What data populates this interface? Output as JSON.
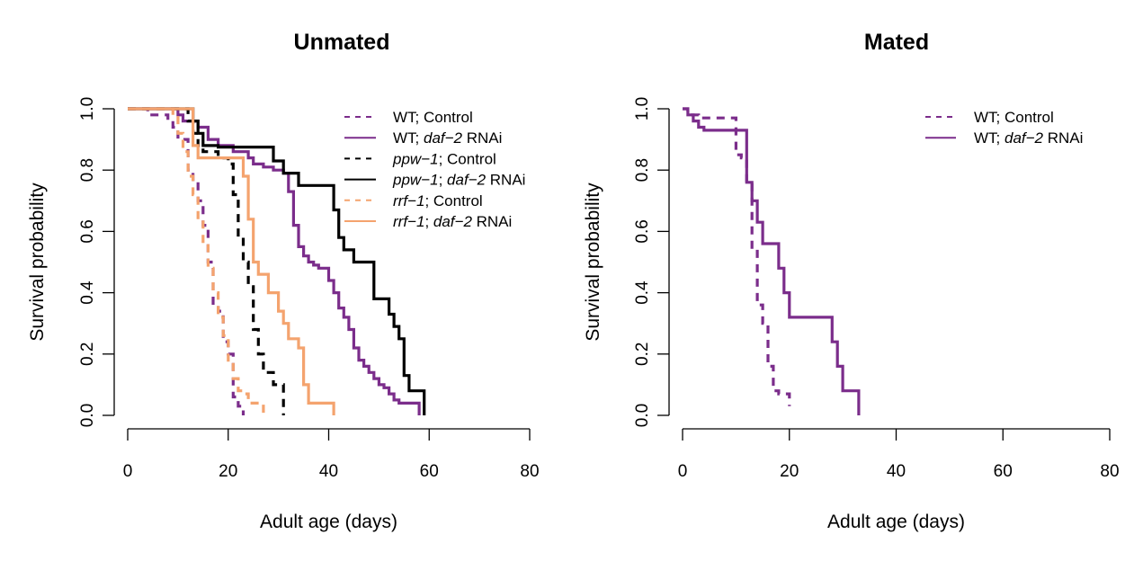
{
  "colors": {
    "wt": "#7b2d8b",
    "ppw": "#000000",
    "rrf": "#f4a36e"
  },
  "chart_data": [
    {
      "type": "line",
      "subtype": "step",
      "title": "Unmated",
      "xlabel": "Adult age (days)",
      "ylabel": "Survival probability",
      "xlim": [
        0,
        80
      ],
      "ylim": [
        0,
        1
      ],
      "x_ticks": [
        "0",
        "20",
        "40",
        "60",
        "80"
      ],
      "y_ticks": [
        "0.0",
        "0.2",
        "0.4",
        "0.6",
        "0.8",
        "1.0"
      ],
      "grid": false,
      "legend_position": "top-right",
      "series": [
        {
          "name": "WT; Control",
          "name_pre": "WT; Control",
          "name_it": "",
          "name_post": "",
          "color": "#7b2d8b",
          "dash": true,
          "x": [
            0,
            4,
            8,
            9,
            10,
            12,
            13,
            14,
            15,
            16,
            17,
            18,
            19,
            20,
            21,
            22,
            23
          ],
          "y": [
            1.0,
            0.98,
            0.96,
            0.94,
            0.9,
            0.8,
            0.76,
            0.7,
            0.62,
            0.5,
            0.36,
            0.34,
            0.24,
            0.2,
            0.06,
            0.03,
            0.0
          ]
        },
        {
          "name": "WT; daf-2 RNAi",
          "name_pre": "WT; ",
          "name_it": "daf−2",
          "name_post": " RNAi",
          "color": "#7b2d8b",
          "dash": false,
          "x": [
            0,
            10,
            11,
            14,
            16,
            18,
            21,
            24,
            25,
            27,
            29,
            31,
            32,
            33,
            34,
            35,
            36,
            37,
            38,
            40,
            41,
            42,
            43,
            44,
            45,
            46,
            47,
            48,
            49,
            50,
            51,
            52,
            53,
            54,
            58
          ],
          "y": [
            1.0,
            0.98,
            0.96,
            0.94,
            0.9,
            0.88,
            0.86,
            0.84,
            0.82,
            0.81,
            0.8,
            0.79,
            0.73,
            0.62,
            0.55,
            0.52,
            0.5,
            0.49,
            0.48,
            0.44,
            0.4,
            0.35,
            0.32,
            0.28,
            0.22,
            0.18,
            0.16,
            0.14,
            0.12,
            0.1,
            0.09,
            0.07,
            0.05,
            0.04,
            0.0
          ]
        },
        {
          "name": "ppw-1; Control",
          "name_pre": "",
          "name_it": "ppw−1",
          "name_post": "; Control",
          "color": "#000000",
          "dash": true,
          "x": [
            0,
            12,
            13,
            14,
            15,
            18,
            20,
            21,
            22,
            23,
            24,
            25,
            26,
            27,
            29,
            31
          ],
          "y": [
            1.0,
            0.96,
            0.92,
            0.88,
            0.86,
            0.84,
            0.82,
            0.72,
            0.58,
            0.5,
            0.42,
            0.28,
            0.2,
            0.14,
            0.1,
            0.0
          ]
        },
        {
          "name": "ppw-1; daf-2 RNAi",
          "name_pre": "",
          "name_it": "ppw−1",
          "name_post": "; daf−2 RNAi",
          "color": "#000000",
          "dash": false,
          "x": [
            0,
            13,
            14,
            15,
            18,
            29,
            31,
            34,
            41,
            42,
            43,
            45,
            49,
            52,
            53,
            54,
            55,
            56,
            57,
            59
          ],
          "y": [
            1.0,
            0.96,
            0.92,
            0.88,
            0.875,
            0.83,
            0.79,
            0.75,
            0.67,
            0.58,
            0.54,
            0.5,
            0.38,
            0.33,
            0.29,
            0.25,
            0.13,
            0.08,
            0.08,
            0.0
          ]
        },
        {
          "name": "rrf-1; Control",
          "name_pre": "",
          "name_it": "rrf−1",
          "name_post": "; Control",
          "color": "#f4a36e",
          "dash": true,
          "x": [
            0,
            9,
            10,
            11,
            12,
            13,
            14,
            15,
            16,
            17,
            18,
            19,
            20,
            21,
            22,
            23,
            24,
            25,
            27
          ],
          "y": [
            1.0,
            0.98,
            0.92,
            0.86,
            0.78,
            0.72,
            0.64,
            0.56,
            0.48,
            0.4,
            0.32,
            0.26,
            0.18,
            0.12,
            0.08,
            0.07,
            0.04,
            0.04,
            0.0
          ]
        },
        {
          "name": "rrf-1; daf-2 RNAi",
          "name_pre": "",
          "name_it": "rrf−1",
          "name_post": "; daf−2 RNAi",
          "color": "#f4a36e",
          "dash": false,
          "x": [
            0,
            13,
            14,
            17,
            18,
            19,
            20,
            23,
            24,
            25,
            26,
            28,
            30,
            31,
            32,
            34,
            35,
            36,
            41
          ],
          "y": [
            1.0,
            0.88,
            0.84,
            0.84,
            0.84,
            0.84,
            0.84,
            0.78,
            0.64,
            0.5,
            0.46,
            0.4,
            0.34,
            0.3,
            0.25,
            0.22,
            0.1,
            0.04,
            0.0
          ]
        }
      ]
    },
    {
      "type": "line",
      "subtype": "step",
      "title": "Mated",
      "xlabel": "Adult age (days)",
      "ylabel": "Survival probability",
      "xlim": [
        0,
        80
      ],
      "ylim": [
        0,
        1
      ],
      "x_ticks": [
        "0",
        "20",
        "40",
        "60",
        "80"
      ],
      "y_ticks": [
        "0.0",
        "0.2",
        "0.4",
        "0.6",
        "0.8",
        "1.0"
      ],
      "grid": false,
      "legend_position": "top-right",
      "series": [
        {
          "name": "WT; Control",
          "name_pre": "WT; Control",
          "name_it": "",
          "name_post": "",
          "color": "#7b2d8b",
          "dash": true,
          "x": [
            0,
            1,
            3,
            10,
            11,
            12,
            13,
            14,
            15,
            16,
            17,
            18,
            20
          ],
          "y": [
            1.0,
            0.98,
            0.97,
            0.85,
            0.84,
            0.76,
            0.54,
            0.36,
            0.3,
            0.16,
            0.08,
            0.07,
            0.03
          ]
        },
        {
          "name": "WT; daf-2 RNAi",
          "name_pre": "WT; ",
          "name_it": "daf−2",
          "name_post": " RNAi",
          "color": "#7b2d8b",
          "dash": false,
          "x": [
            0,
            1,
            2,
            3,
            4,
            12,
            13,
            14,
            15,
            18,
            19,
            20,
            28,
            29,
            30,
            33
          ],
          "y": [
            1.0,
            0.98,
            0.96,
            0.94,
            0.93,
            0.76,
            0.7,
            0.63,
            0.56,
            0.48,
            0.4,
            0.32,
            0.24,
            0.16,
            0.08,
            0.0
          ]
        }
      ]
    }
  ]
}
